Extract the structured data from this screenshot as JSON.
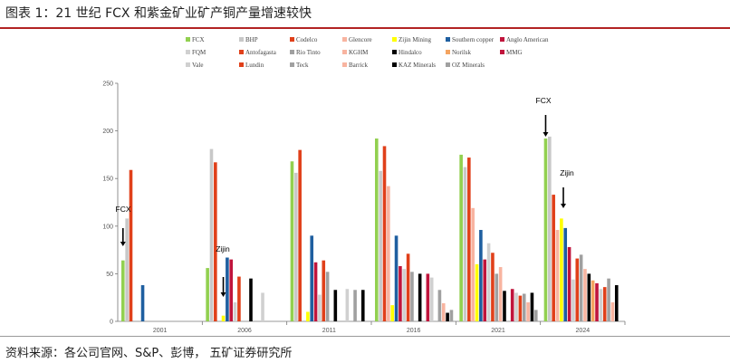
{
  "header": {
    "title": "图表 1：21 世纪 FCX 和紫金矿业矿产铜产量增速较快"
  },
  "footer": {
    "source": "资料来源：各公司官网、S&P、彭博，   五矿证券研究所"
  },
  "chart_data": {
    "type": "bar",
    "categories": [
      "2001",
      "2006",
      "2011",
      "2016",
      "2021",
      "2024"
    ],
    "ylim": [
      0,
      250
    ],
    "yticks": [
      0,
      50,
      100,
      150,
      200,
      250
    ],
    "grid": false,
    "legend_position": "top",
    "series": [
      {
        "name": "FCX",
        "color": "#92d050",
        "values": [
          64,
          56,
          168,
          192,
          175,
          192
        ]
      },
      {
        "name": "BHP",
        "color": "#c8c8c8",
        "values": [
          108,
          181,
          156,
          158,
          162,
          194
        ]
      },
      {
        "name": "Codelco",
        "color": "#e0401a",
        "values": [
          159,
          167,
          180,
          184,
          172,
          133
        ]
      },
      {
        "name": "Glencore",
        "color": "#f8b4a0",
        "values": [
          null,
          null,
          null,
          142,
          119,
          96
        ]
      },
      {
        "name": "Zijin Mining",
        "color": "#ffff00",
        "values": [
          null,
          6,
          10,
          17,
          60,
          108
        ]
      },
      {
        "name": "Southern copper",
        "color": "#1f5fa0",
        "values": [
          38,
          67,
          90,
          90,
          96,
          98
        ]
      },
      {
        "name": "Anglo American",
        "color": "#c0143c",
        "values": [
          null,
          65,
          62,
          58,
          65,
          78
        ]
      },
      {
        "name": "FQM",
        "color": "#d0d0d0",
        "values": [
          null,
          20,
          28,
          55,
          82,
          44
        ]
      },
      {
        "name": "Antofagasta",
        "color": "#e0401a",
        "values": [
          null,
          47,
          64,
          71,
          72,
          66
        ]
      },
      {
        "name": "Rio Tinto",
        "color": "#a0a0a0",
        "values": [
          null,
          null,
          52,
          52,
          50,
          70
        ]
      },
      {
        "name": "KGHM",
        "color": "#f8b4a0",
        "values": [
          null,
          null,
          null,
          null,
          57,
          55
        ]
      },
      {
        "name": "Hindalco",
        "color": "#000000",
        "values": [
          null,
          45,
          33,
          50,
          32,
          50
        ]
      },
      {
        "name": "Norilsk",
        "color": "#f4a460",
        "values": [
          null,
          null,
          null,
          null,
          null,
          43
        ]
      },
      {
        "name": "MMG",
        "color": "#c0143c",
        "values": [
          null,
          null,
          null,
          50,
          34,
          40
        ]
      },
      {
        "name": "Vale",
        "color": "#d0d0d0",
        "values": [
          null,
          30,
          34,
          46,
          30,
          34
        ]
      },
      {
        "name": "Lundin",
        "color": "#e0401a",
        "values": [
          null,
          null,
          null,
          null,
          27,
          36
        ]
      },
      {
        "name": "Teck",
        "color": "#a0a0a0",
        "values": [
          null,
          null,
          33,
          33,
          29,
          45
        ]
      },
      {
        "name": "Barrick",
        "color": "#f8b4a0",
        "values": [
          null,
          null,
          null,
          19,
          20,
          20
        ]
      },
      {
        "name": "KAZ Minerals",
        "color": "#000000",
        "values": [
          null,
          null,
          33,
          9,
          30,
          38
        ]
      },
      {
        "name": "OZ Minerals",
        "color": "#a0a0a0",
        "values": [
          null,
          null,
          null,
          12,
          12,
          null
        ]
      }
    ],
    "annotations": [
      {
        "text": "FCX",
        "category": "2001"
      },
      {
        "text": "Zijin",
        "category": "2006"
      },
      {
        "text": "FCX",
        "category": "2024"
      },
      {
        "text": "Zijin",
        "category": "2024"
      }
    ]
  }
}
